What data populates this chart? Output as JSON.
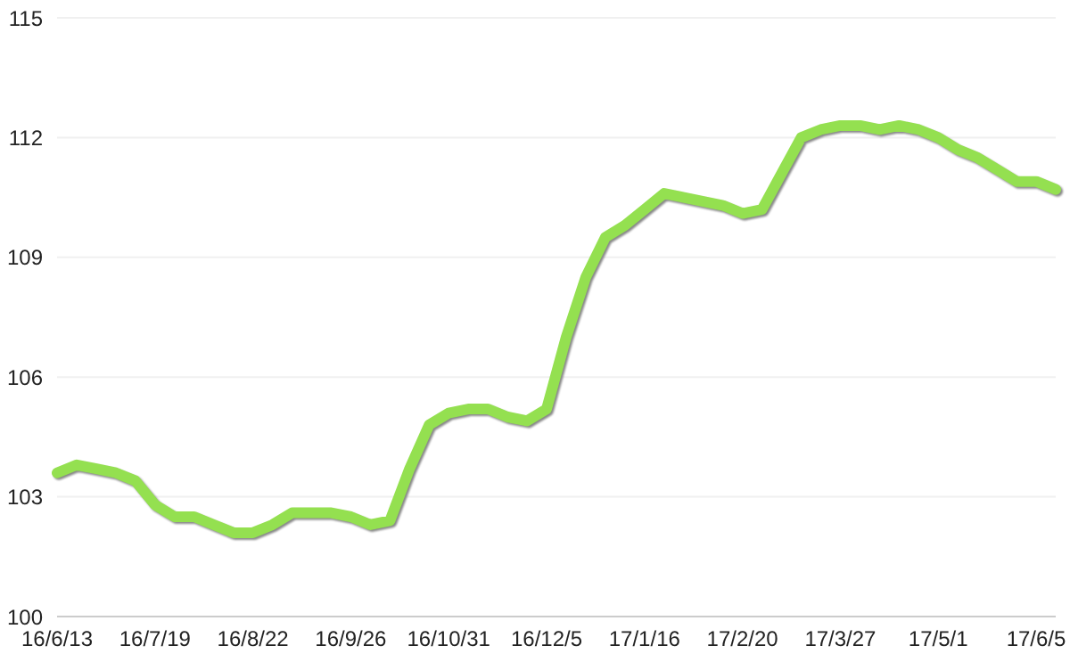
{
  "chart_data": {
    "type": "line",
    "categories": [
      "16/6/13",
      null,
      null,
      null,
      null,
      "16/7/19",
      null,
      null,
      null,
      null,
      "16/8/22",
      null,
      null,
      null,
      null,
      "16/9/26",
      null,
      null,
      null,
      null,
      "16/10/31",
      null,
      null,
      null,
      null,
      "16/12/5",
      null,
      null,
      null,
      null,
      "17/1/16",
      null,
      null,
      null,
      null,
      "17/2/20",
      null,
      null,
      null,
      null,
      "17/3/27",
      null,
      null,
      null,
      null,
      "17/5/1",
      null,
      null,
      null,
      null,
      "17/6/5",
      null
    ],
    "series": [
      {
        "color": "#94e050",
        "values": [
          103.6,
          103.8,
          103.7,
          103.6,
          103.4,
          102.8,
          102.5,
          102.5,
          102.3,
          102.1,
          102.1,
          102.3,
          102.6,
          102.6,
          102.6,
          102.5,
          102.3,
          102.4,
          103.7,
          104.8,
          105.1,
          105.2,
          105.2,
          105.0,
          104.9,
          105.2,
          107.0,
          108.5,
          109.5,
          109.8,
          110.2,
          110.6,
          110.5,
          110.4,
          110.3,
          110.1,
          110.2,
          111.1,
          112.0,
          112.2,
          112.3,
          112.3,
          112.2,
          112.3,
          112.2,
          112.0,
          111.7,
          111.5,
          111.2,
          110.9,
          110.9,
          110.7
        ]
      }
    ],
    "ylim": [
      100,
      115
    ],
    "yticks": [
      100,
      103,
      106,
      109,
      112,
      115
    ],
    "grid": "y",
    "legend": false,
    "marker": "none",
    "line_style": "solid"
  }
}
